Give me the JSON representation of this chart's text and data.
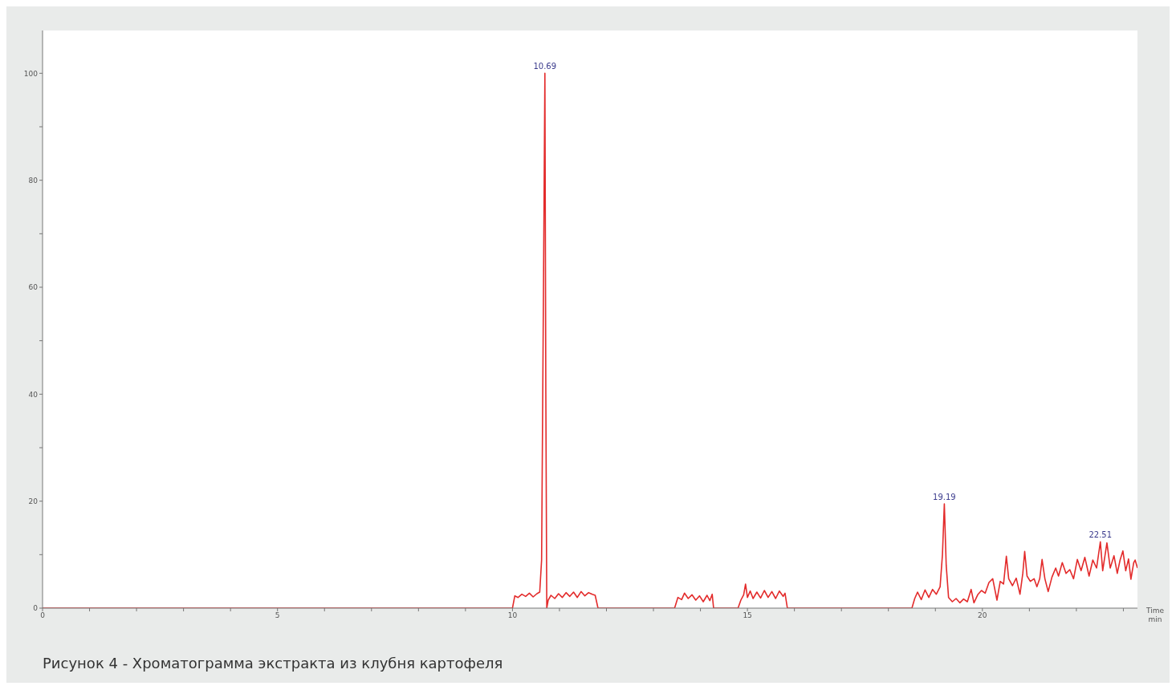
{
  "chart_data": {
    "type": "line",
    "xlabel": "Time min",
    "x": [
      0,
      10.0,
      10.05,
      10.12,
      10.2,
      10.28,
      10.36,
      10.44,
      10.52,
      10.58,
      10.62,
      10.66,
      10.69,
      10.71,
      10.73,
      10.76,
      10.82,
      10.9,
      10.98,
      11.06,
      11.14,
      11.22,
      11.3,
      11.38,
      11.46,
      11.54,
      11.62,
      11.7,
      11.76,
      11.82,
      13.45,
      13.52,
      13.6,
      13.66,
      13.74,
      13.82,
      13.9,
      13.98,
      14.06,
      14.14,
      14.2,
      14.25,
      14.28,
      14.8,
      14.86,
      14.92,
      14.96,
      15.0,
      15.06,
      15.12,
      15.2,
      15.28,
      15.36,
      15.44,
      15.52,
      15.6,
      15.68,
      15.76,
      15.8,
      15.85,
      18.5,
      18.56,
      18.62,
      18.7,
      18.78,
      18.86,
      18.94,
      19.02,
      19.1,
      19.15,
      19.19,
      19.23,
      19.28,
      19.36,
      19.44,
      19.52,
      19.6,
      19.68,
      19.76,
      19.82,
      19.9,
      19.98,
      20.06,
      20.14,
      20.22,
      20.31,
      20.38,
      20.45,
      20.51,
      20.56,
      20.64,
      20.72,
      20.8,
      20.86,
      20.9,
      20.95,
      21.02,
      21.1,
      21.16,
      21.22,
      21.27,
      21.33,
      21.4,
      21.48,
      21.56,
      21.62,
      21.7,
      21.78,
      21.86,
      21.94,
      22.02,
      22.1,
      22.18,
      22.27,
      22.35,
      22.43,
      22.51,
      22.56,
      22.65,
      22.72,
      22.8,
      22.87,
      22.93,
      22.99,
      23.05,
      23.11,
      23.16,
      23.22,
      23.25,
      23.3
    ],
    "series": [
      {
        "color": "#e32b2b",
        "values": [
          0,
          0,
          2.3,
          2.0,
          2.6,
          2.2,
          2.8,
          2.1,
          2.7,
          3.0,
          9.0,
          60,
          100,
          40,
          0,
          1.5,
          2.4,
          1.8,
          2.7,
          2.0,
          2.9,
          2.2,
          3.0,
          2.0,
          3.1,
          2.3,
          2.9,
          2.6,
          2.4,
          0,
          0,
          2.0,
          1.6,
          2.8,
          1.8,
          2.5,
          1.5,
          2.3,
          1.2,
          2.4,
          1.4,
          2.6,
          0,
          0,
          1.5,
          2.5,
          4.5,
          2.0,
          3.2,
          1.8,
          3.0,
          1.9,
          3.3,
          2.0,
          3.1,
          1.8,
          3.2,
          2.2,
          2.8,
          0,
          0,
          1.8,
          3.0,
          1.6,
          3.4,
          2.0,
          3.5,
          2.6,
          4.0,
          10,
          19.5,
          8,
          2.0,
          1.2,
          1.8,
          1.0,
          1.7,
          1.2,
          3.5,
          1.0,
          2.5,
          3.3,
          2.8,
          4.8,
          5.5,
          1.5,
          5.0,
          4.5,
          9.7,
          5.5,
          4.2,
          5.6,
          2.6,
          6.5,
          10.6,
          6.0,
          5.0,
          5.5,
          4.0,
          5.5,
          9.1,
          5.5,
          3.1,
          5.8,
          7.5,
          6.0,
          8.5,
          6.5,
          7.2,
          5.5,
          9.1,
          7.0,
          9.5,
          6.0,
          9.0,
          7.5,
          12.4,
          7.0,
          12.2,
          7.5,
          9.8,
          6.5,
          9.0,
          10.7,
          7.0,
          9.2,
          5.4,
          8.5,
          9.0,
          7.5
        ]
      }
    ],
    "xlim": [
      0,
      23.3
    ],
    "xticks": [
      0,
      {
        "value": 1,
        "label": null
      },
      {
        "value": 2,
        "label": null
      },
      {
        "value": 3,
        "label": null
      },
      {
        "value": 4,
        "label": null
      },
      5,
      {
        "value": 6,
        "label": null
      },
      {
        "value": 7,
        "label": null
      },
      {
        "value": 8,
        "label": null
      },
      {
        "value": 9,
        "label": null
      },
      10,
      {
        "value": 11,
        "label": null
      },
      {
        "value": 12,
        "label": null
      },
      {
        "value": 13,
        "label": null
      },
      {
        "value": 14,
        "label": null
      },
      15,
      {
        "value": 16,
        "label": null
      },
      {
        "value": 17,
        "label": null
      },
      {
        "value": 18,
        "label": null
      },
      {
        "value": 19,
        "label": null
      },
      20,
      {
        "value": 21,
        "label": null
      },
      {
        "value": 22,
        "label": null
      },
      {
        "value": 23,
        "label": null
      }
    ],
    "ylim": [
      0,
      108
    ],
    "yticks": [
      0,
      {
        "value": 10,
        "label": null
      },
      20,
      {
        "value": 30,
        "label": null
      },
      40,
      {
        "value": 50,
        "label": null
      },
      60,
      {
        "value": 70,
        "label": null
      },
      80,
      {
        "value": 90,
        "label": null
      },
      100
    ],
    "grid": false,
    "marker": "none",
    "line_style": "solid",
    "annotations": [
      {
        "text": "10.69",
        "x": 10.69,
        "y": 100
      },
      {
        "text": "19.19",
        "x": 19.19,
        "y": 19.5
      },
      {
        "text": "22.51",
        "x": 22.51,
        "y": 12.4
      },
      "Рисунок 4 - Хроматограмма экстракта из клубня картофеля"
    ]
  }
}
